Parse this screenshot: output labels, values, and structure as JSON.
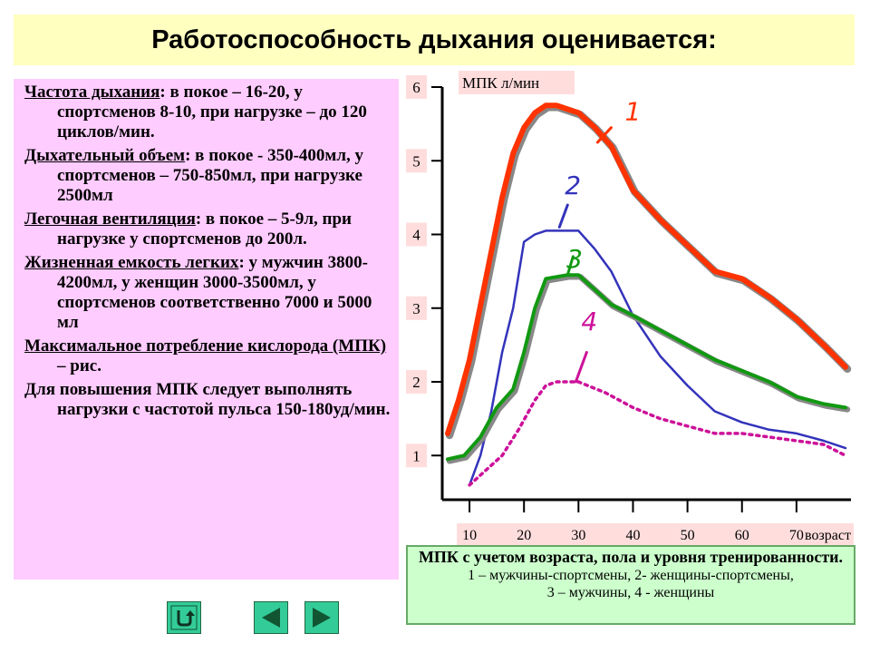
{
  "title": "Работоспособность дыхания оценивается:",
  "paragraphs": [
    {
      "term": "Частота дыхания",
      "rest": ": в покое – 16-20, у спортсменов 8-10, при нагрузке – до 120 циклов/мин."
    },
    {
      "term": "Дыхательный объем",
      "rest": ": в покое - 350-400мл, у спортсменов – 750-850мл, при нагрузке 2500мл"
    },
    {
      "term": "Легочная вентиляция",
      "rest": ": в покое – 5-9л, при нагрузке у спортсменов до 200л."
    },
    {
      "term": "Жизненная емкость легких",
      "rest": ": у мужчин 3800-4200мл, у женщин 3000-3500мл, у спортсменов соответственно 7000 и 5000 мл"
    },
    {
      "term": "Максимальное потребление кислорода (МПК)",
      "rest": " – рис."
    },
    {
      "term": "",
      "rest": "Для повышения МПК следует выполнять нагрузки с частотой пульса 150-180уд/мин."
    }
  ],
  "caption": {
    "title": "МПК с учетом возраста, пола и уровня тренированности.",
    "legend_line1": "1 – мужчины-спортсмены, 2- женщины-спортсмены,",
    "legend_line2": "3 – мужчины, 4 - женщины"
  },
  "chart_data": {
    "type": "line",
    "ylabel": "МПК л/мин",
    "xlabel": "возраст",
    "yticks": [
      "1",
      "2",
      "3",
      "4",
      "5",
      "6"
    ],
    "xticks": [
      "10",
      "20",
      "30",
      "40",
      "50",
      "60",
      "70"
    ],
    "xlim": [
      5,
      80
    ],
    "ylim": [
      0.4,
      6
    ],
    "series": [
      {
        "name": "1",
        "color": "#ff3300",
        "style": "solid",
        "width": 6,
        "x": [
          6,
          8,
          10,
          13,
          16,
          18,
          20,
          22,
          24,
          26,
          28,
          30,
          33,
          36,
          40,
          45,
          50,
          55,
          60,
          65,
          70,
          75,
          79
        ],
        "y": [
          1.3,
          1.75,
          2.3,
          3.4,
          4.5,
          5.1,
          5.45,
          5.65,
          5.75,
          5.75,
          5.7,
          5.65,
          5.45,
          5.2,
          4.6,
          4.2,
          3.85,
          3.5,
          3.4,
          3.15,
          2.85,
          2.5,
          2.2
        ]
      },
      {
        "name": "2",
        "color": "#3333bb",
        "style": "solid",
        "width": 2.5,
        "x": [
          10,
          12,
          14,
          16,
          18,
          20,
          22,
          24,
          28,
          30,
          33,
          36,
          40,
          45,
          50,
          55,
          60,
          65,
          70,
          75,
          79
        ],
        "y": [
          0.6,
          1.0,
          1.6,
          2.4,
          3.0,
          3.9,
          4.0,
          4.05,
          4.05,
          4.05,
          3.8,
          3.5,
          2.9,
          2.35,
          1.95,
          1.6,
          1.45,
          1.35,
          1.3,
          1.2,
          1.1
        ]
      },
      {
        "name": "3",
        "color": "#119911",
        "style": "solid",
        "width": 4,
        "x": [
          6,
          9,
          12,
          15,
          18,
          20,
          22,
          24,
          28,
          30,
          33,
          36,
          40,
          45,
          50,
          55,
          60,
          65,
          70,
          75,
          79
        ],
        "y": [
          0.95,
          1.0,
          1.25,
          1.65,
          1.9,
          2.4,
          3.0,
          3.4,
          3.45,
          3.45,
          3.25,
          3.05,
          2.9,
          2.7,
          2.5,
          2.3,
          2.15,
          2.0,
          1.8,
          1.7,
          1.65
        ]
      },
      {
        "name": "4",
        "color": "#cc1199",
        "style": "dotted",
        "width": 3.5,
        "x": [
          10,
          13,
          16,
          19,
          22,
          24,
          26,
          28,
          30,
          35,
          40,
          45,
          50,
          55,
          60,
          65,
          70,
          75,
          79
        ],
        "y": [
          0.6,
          0.8,
          1.0,
          1.35,
          1.75,
          1.95,
          2.0,
          2.0,
          2.0,
          1.85,
          1.65,
          1.5,
          1.4,
          1.3,
          1.3,
          1.25,
          1.2,
          1.15,
          1.0
        ]
      }
    ],
    "labels": [
      "1",
      "2",
      "3",
      "4"
    ]
  },
  "nav": {
    "return_icon": "return-arrow-icon",
    "prev_icon": "triangle-left-icon",
    "next_icon": "triangle-right-icon"
  }
}
